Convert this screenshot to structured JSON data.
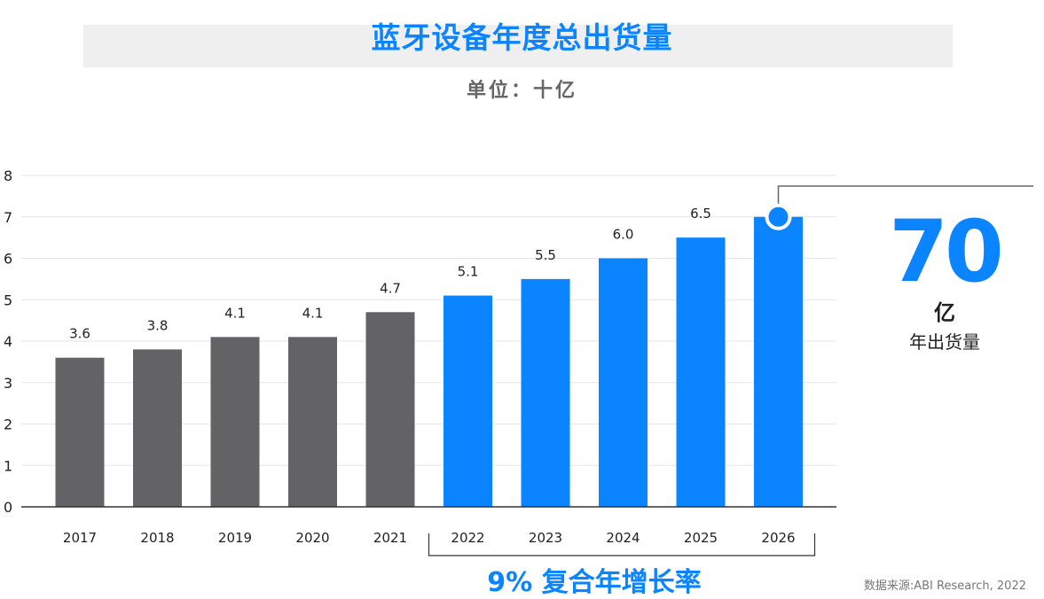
{
  "title": "蓝牙设备年度总出货量",
  "subtitle": "单位：十亿",
  "callout": {
    "value": "70",
    "unit": "亿",
    "label": "年出货量"
  },
  "cagr": "9% 复合年增长率",
  "source": "数据来源:ABI Research, 2022",
  "chart_data": {
    "type": "bar",
    "title": "蓝牙设备年度总出货量",
    "ylabel": "单位：十亿",
    "categories": [
      "2017",
      "2018",
      "2019",
      "2020",
      "2021",
      "2022",
      "2023",
      "2024",
      "2025",
      "2026"
    ],
    "values": [
      3.6,
      3.8,
      4.1,
      4.1,
      4.7,
      5.1,
      5.5,
      6.0,
      6.5,
      7.0
    ],
    "data_labels": [
      "3.6",
      "3.8",
      "4.1",
      "4.1",
      "4.7",
      "5.1",
      "5.5",
      "6.0",
      "6.5",
      ""
    ],
    "ylim": [
      0,
      8
    ],
    "yticks": [
      "0",
      "1",
      "2",
      "3",
      "4",
      "5",
      "6",
      "7",
      "8"
    ],
    "grid": true,
    "colors": {
      "historical": "#636366",
      "forecast": "#0a84ff"
    },
    "forecast_start": "2022"
  }
}
